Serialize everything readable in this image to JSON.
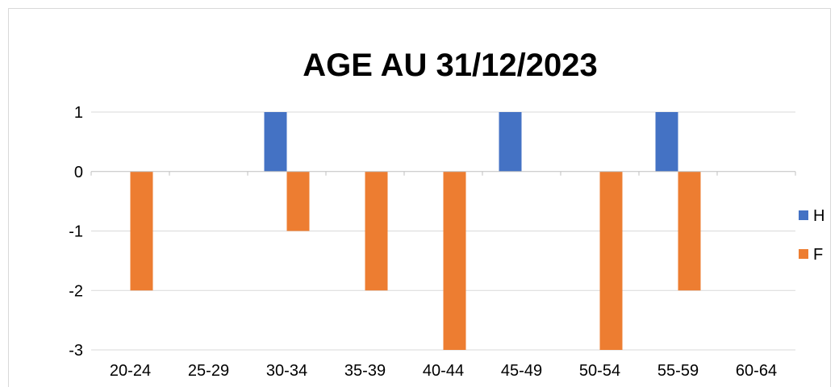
{
  "chart_data": {
    "type": "bar",
    "title": "AGE AU 31/12/2023",
    "categories": [
      "20-24",
      "25-29",
      "30-34",
      "35-39",
      "40-44",
      "45-49",
      "50-54",
      "55-59",
      "60-64"
    ],
    "series": [
      {
        "name": "H",
        "color": "#4472c4",
        "values": [
          0,
          0,
          1,
          0,
          0,
          1,
          0,
          1,
          0
        ]
      },
      {
        "name": "F",
        "color": "#ed7d31",
        "values": [
          -2,
          0,
          -1,
          -2,
          -3,
          0,
          -3,
          -2,
          0
        ]
      }
    ],
    "ylim": [
      -3,
      1
    ],
    "yticks": [
      "1",
      "0",
      "-1",
      "-2",
      "-3"
    ],
    "grid": true,
    "legend": "right"
  }
}
